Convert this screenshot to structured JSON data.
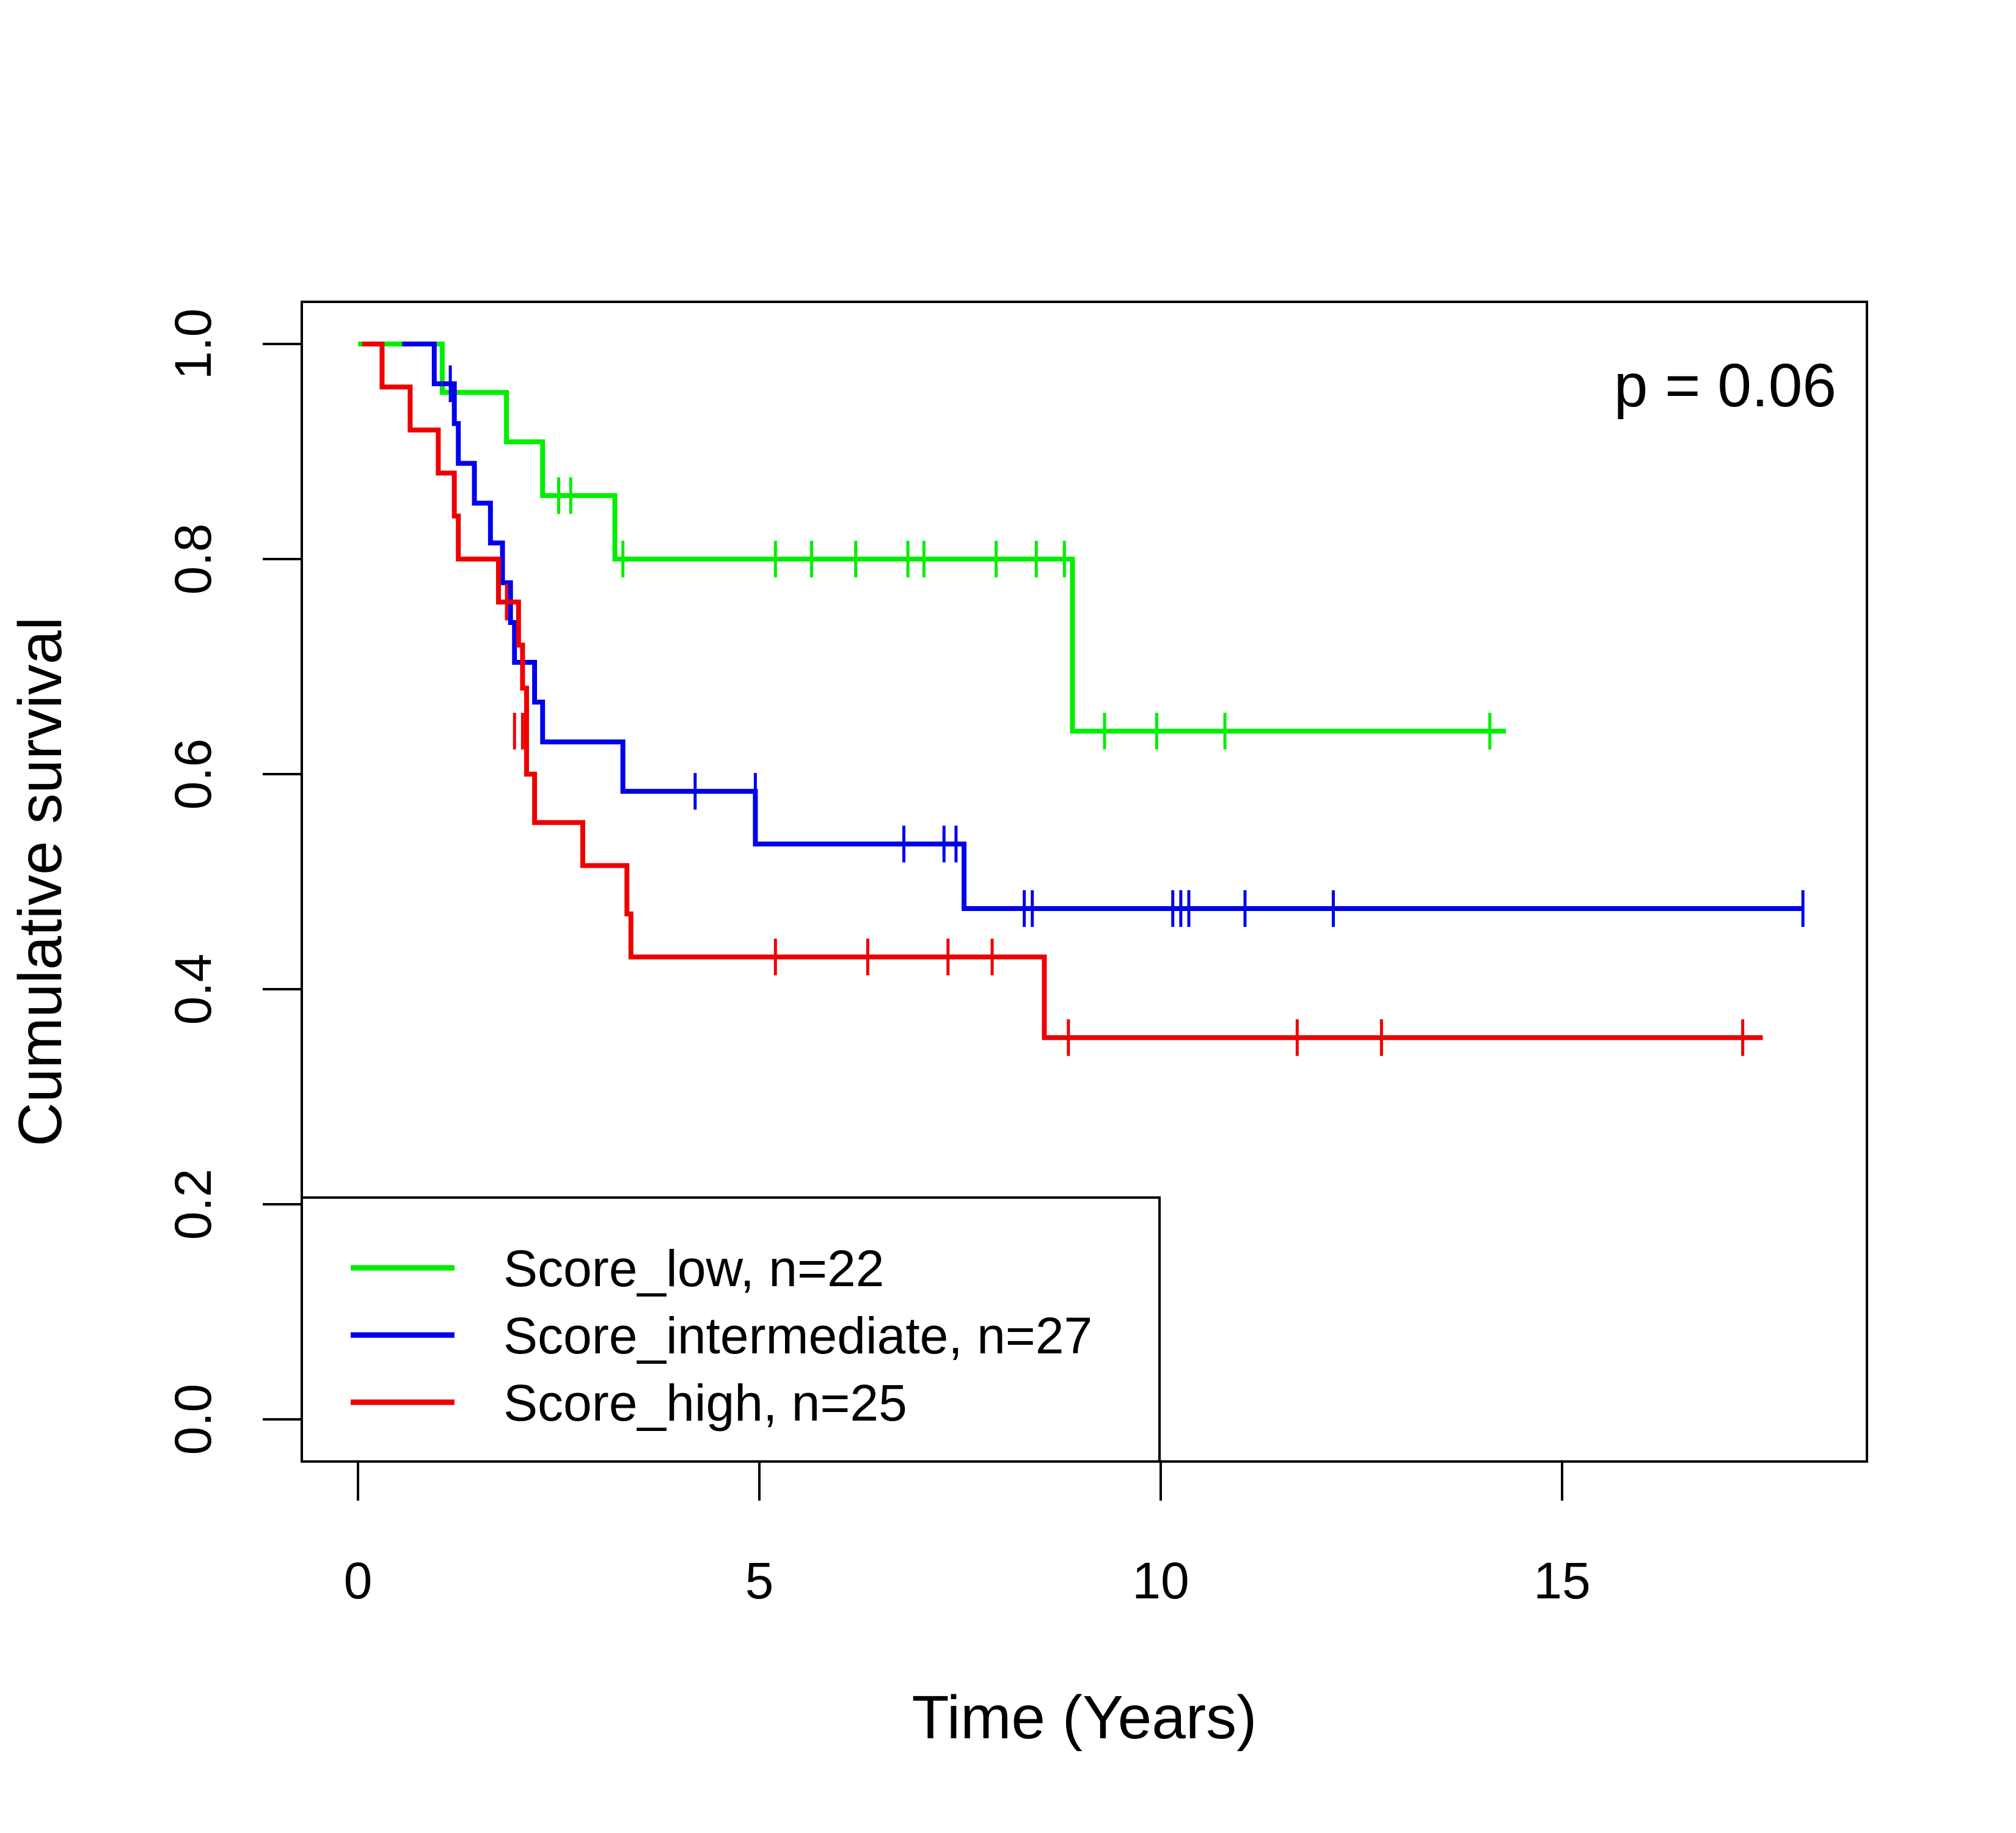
{
  "chart_data": {
    "type": "line",
    "subtype": "kaplan-meier step",
    "title": "",
    "xlabel": "Time (Years)",
    "ylabel": "Cumulative survival",
    "xlim": [
      0,
      18
    ],
    "ylim": [
      0,
      1.0
    ],
    "x_ticks": [
      0,
      5,
      10,
      15
    ],
    "y_ticks": [
      0.0,
      0.2,
      0.4,
      0.6,
      0.8,
      1.0
    ],
    "x_tick_labels": [
      "0",
      "5",
      "10",
      "15"
    ],
    "y_tick_labels": [
      "0.0",
      "0.2",
      "0.4",
      "0.6",
      "0.8",
      "1.0"
    ],
    "annotation": "p = 0.06",
    "legend_position": "bottom-left",
    "grid": false,
    "series": [
      {
        "name": "Score_low, n=22",
        "color": "#00ee00",
        "steps": [
          [
            0,
            1.0
          ],
          [
            1.05,
            0.955
          ],
          [
            1.85,
            0.909
          ],
          [
            2.3,
            0.859
          ],
          [
            3.2,
            0.8
          ],
          [
            8.9,
            0.64
          ],
          [
            14.3,
            0.64
          ]
        ],
        "censored": [
          [
            2.5,
            0.859
          ],
          [
            2.65,
            0.859
          ],
          [
            3.3,
            0.8
          ],
          [
            5.2,
            0.8
          ],
          [
            5.65,
            0.8
          ],
          [
            6.2,
            0.8
          ],
          [
            6.85,
            0.8
          ],
          [
            7.05,
            0.8
          ],
          [
            7.95,
            0.8
          ],
          [
            8.45,
            0.8
          ],
          [
            8.8,
            0.8
          ],
          [
            9.3,
            0.64
          ],
          [
            9.95,
            0.64
          ],
          [
            10.8,
            0.64
          ],
          [
            14.1,
            0.64
          ]
        ]
      },
      {
        "name": "Score_intermediate, n=27",
        "color": "#0000ee",
        "steps": [
          [
            0.55,
            1.0
          ],
          [
            0.95,
            0.963
          ],
          [
            1.2,
            0.926
          ],
          [
            1.25,
            0.889
          ],
          [
            1.45,
            0.852
          ],
          [
            1.65,
            0.815
          ],
          [
            1.8,
            0.778
          ],
          [
            1.9,
            0.741
          ],
          [
            1.95,
            0.704
          ],
          [
            2.2,
            0.667
          ],
          [
            2.3,
            0.63
          ],
          [
            3.3,
            0.584
          ],
          [
            4.95,
            0.535
          ],
          [
            7.55,
            0.475
          ],
          [
            18.0,
            0.475
          ]
        ],
        "censored": [
          [
            1.15,
            0.963
          ],
          [
            4.2,
            0.584
          ],
          [
            4.95,
            0.584
          ],
          [
            6.8,
            0.535
          ],
          [
            7.3,
            0.535
          ],
          [
            7.45,
            0.535
          ],
          [
            8.3,
            0.475
          ],
          [
            8.4,
            0.475
          ],
          [
            10.15,
            0.475
          ],
          [
            10.25,
            0.475
          ],
          [
            10.35,
            0.475
          ],
          [
            11.05,
            0.475
          ],
          [
            12.15,
            0.475
          ],
          [
            18.0,
            0.475
          ]
        ]
      },
      {
        "name": "Score_high, n=25",
        "color": "#ee0000",
        "steps": [
          [
            0.05,
            1.0
          ],
          [
            0.3,
            0.96
          ],
          [
            0.65,
            0.92
          ],
          [
            1.0,
            0.88
          ],
          [
            1.2,
            0.84
          ],
          [
            1.25,
            0.8
          ],
          [
            1.75,
            0.76
          ],
          [
            2.0,
            0.72
          ],
          [
            2.05,
            0.68
          ],
          [
            2.1,
            0.64
          ],
          [
            2.1,
            0.6
          ],
          [
            2.2,
            0.555
          ],
          [
            2.8,
            0.515
          ],
          [
            3.35,
            0.47
          ],
          [
            3.4,
            0.43
          ],
          [
            8.55,
            0.355
          ],
          [
            17.5,
            0.355
          ]
        ],
        "censored": [
          [
            1.85,
            0.76
          ],
          [
            1.95,
            0.64
          ],
          [
            2.05,
            0.64
          ],
          [
            5.2,
            0.43
          ],
          [
            6.35,
            0.43
          ],
          [
            7.35,
            0.43
          ],
          [
            7.9,
            0.43
          ],
          [
            8.85,
            0.355
          ],
          [
            11.7,
            0.355
          ],
          [
            12.75,
            0.355
          ],
          [
            17.25,
            0.355
          ]
        ]
      }
    ]
  }
}
